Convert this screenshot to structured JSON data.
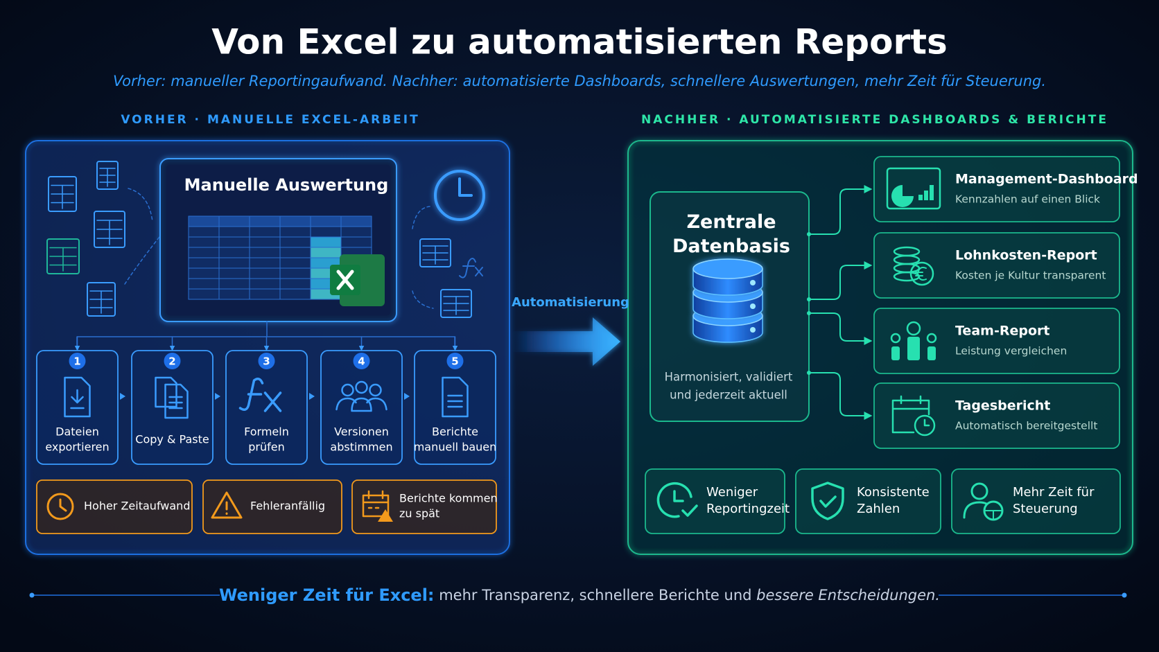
{
  "header": {
    "title": "Von Excel zu automatisierten Reports",
    "subtitle": "Vorher: manueller Reportingaufwand. Nachher: automatisierte Dashboards, schnellere Auswertungen, mehr Zeit für Steuerung."
  },
  "before": {
    "label": "VORHER · MANUELLE EXCEL-ARBEIT",
    "panel_title": "Manuelle Auswertung",
    "steps": [
      {
        "number": 1,
        "label": [
          "Dateien",
          "exportieren"
        ]
      },
      {
        "number": 2,
        "label": [
          "Copy & Paste"
        ]
      },
      {
        "number": 3,
        "label": [
          "Formeln",
          "prüfen"
        ]
      },
      {
        "number": 4,
        "label": [
          "Versionen",
          "abstimmen"
        ]
      },
      {
        "number": 5,
        "label": [
          "Berichte",
          "manuell bauen"
        ]
      }
    ],
    "issues": [
      [
        "Hoher Zeitaufwand"
      ],
      [
        "Fehleranfällig"
      ],
      [
        "Berichte kommen",
        "zu spät"
      ]
    ]
  },
  "transition": "Automatisierung",
  "after": {
    "label": "NACHHER · AUTOMATISIERTE DASHBOARDS & BERICHTE",
    "hub": {
      "title": [
        "Zentrale",
        "Datenbasis"
      ],
      "caption": [
        "Harmonisiert, validiert",
        "und jederzeit aktuell"
      ]
    },
    "reports": [
      {
        "title": "Management-Dashboard",
        "subtitle": "Kennzahlen auf einen Blick"
      },
      {
        "title": "Lohnkosten-Report",
        "subtitle": "Kosten je Kultur transparent"
      },
      {
        "title": "Team-Report",
        "subtitle": "Leistung vergleichen"
      },
      {
        "title": "Tagesbericht",
        "subtitle": "Automatisch bereitgestellt"
      }
    ],
    "benefits": [
      [
        "Weniger",
        "Reportingzeit"
      ],
      [
        "Konsistente",
        "Zahlen"
      ],
      [
        "Mehr Zeit für",
        "Steuerung"
      ]
    ]
  },
  "footer": {
    "highlight": "Weniger Zeit für Excel:",
    "text": " mehr Transparenz, schnellere Berichte und ",
    "emphasis": "bessere Entscheidungen."
  }
}
